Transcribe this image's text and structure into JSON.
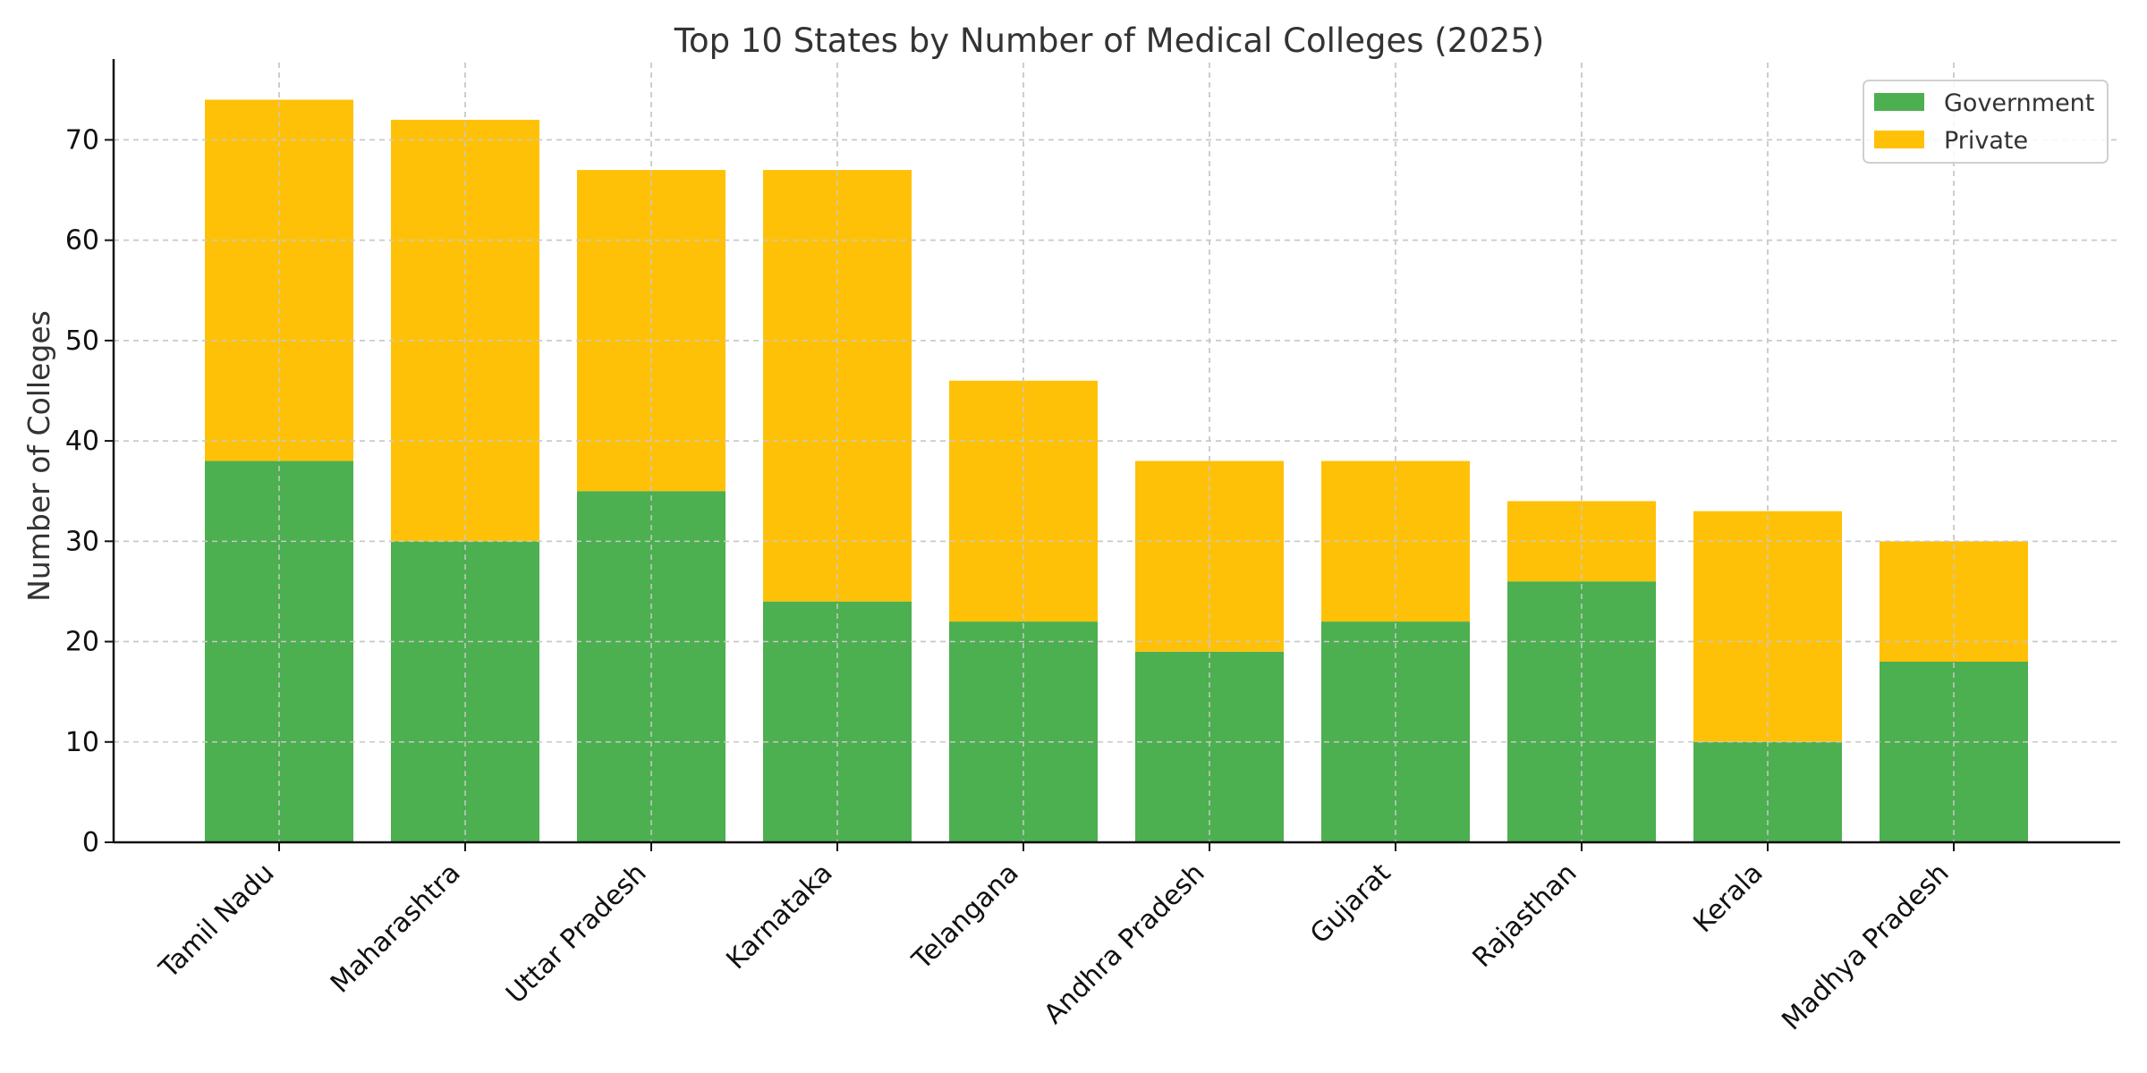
{
  "chart_data": {
    "type": "bar",
    "stacked": true,
    "title": "Top 10 States by Number of Medical Colleges (2025)",
    "xlabel": "",
    "ylabel": "Number of Colleges",
    "categories": [
      "Tamil Nadu",
      "Maharashtra",
      "Uttar Pradesh",
      "Karnataka",
      "Telangana",
      "Andhra Pradesh",
      "Gujarat",
      "Rajasthan",
      "Kerala",
      "Madhya Pradesh"
    ],
    "series": [
      {
        "name": "Government",
        "color": "#4caf50",
        "values": [
          38,
          30,
          35,
          24,
          22,
          19,
          22,
          26,
          10,
          18
        ]
      },
      {
        "name": "Private",
        "color": "#ffc107",
        "values": [
          36,
          42,
          32,
          43,
          24,
          19,
          16,
          8,
          23,
          12
        ]
      }
    ],
    "ylim": [
      0,
      77.7
    ],
    "yticks": [
      0,
      10,
      20,
      30,
      40,
      50,
      60,
      70
    ],
    "grid": true,
    "legend_position": "top-right"
  }
}
